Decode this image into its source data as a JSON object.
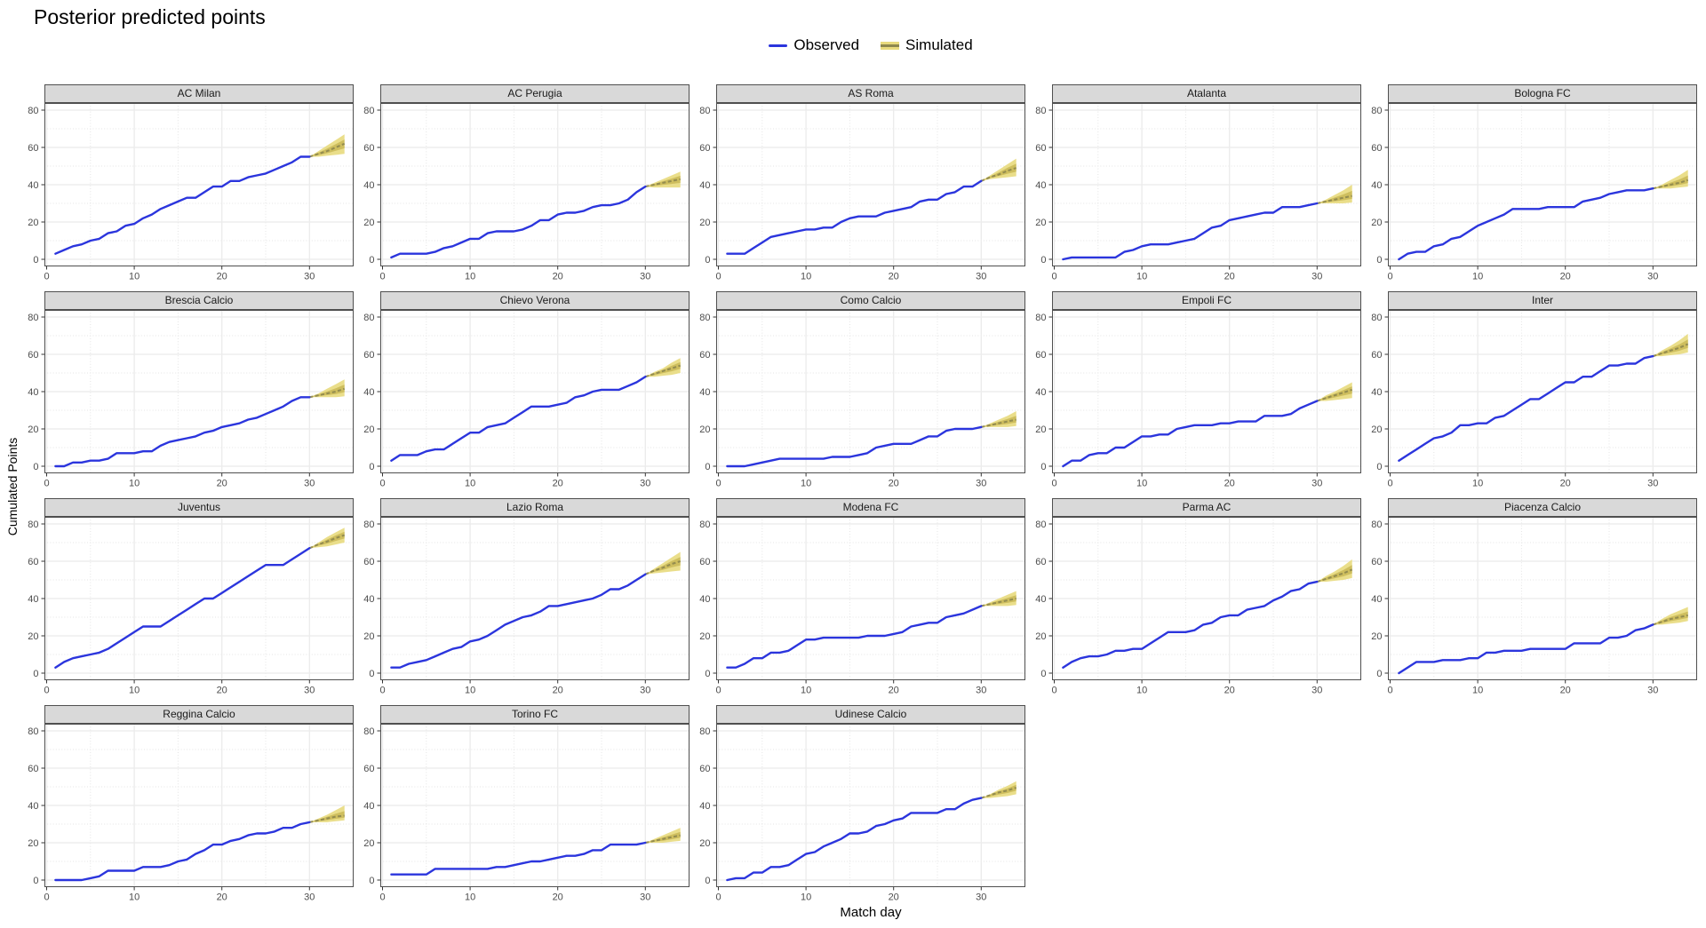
{
  "title": "Posterior predicted points",
  "legend": {
    "observed_label": "Observed",
    "simulated_label": "Simulated"
  },
  "axes": {
    "x_label": "Match day",
    "y_label": "Cumulated Points"
  },
  "chart_data": {
    "type": "line",
    "title": "Posterior predicted points",
    "xlabel": "Match day",
    "ylabel": "Cumulated Points",
    "x_ticks": [
      0,
      10,
      20,
      30
    ],
    "y_ticks": [
      0,
      20,
      40,
      60,
      80
    ],
    "x_minor_ticks": [
      5,
      15,
      25,
      35
    ],
    "y_minor_ticks": [
      10,
      30,
      50,
      70
    ],
    "xlim": [
      0,
      35
    ],
    "ylim": [
      0,
      84
    ],
    "grid": true,
    "legend_position": "top-center",
    "legend": [
      {
        "name": "Observed",
        "color": "#2b35dd"
      },
      {
        "name": "Simulated",
        "color": "#8e874e"
      }
    ],
    "colors": {
      "observed": "#2b35dd",
      "sim_outer": "#e8da7d",
      "sim_inner": "#ccbc5c",
      "sim_center": "#8e874e",
      "grid_major": "#ebebeb",
      "grid_minor": "#e4e4e4",
      "panel_border": "#4f4f4f",
      "strip_bg": "#d9d9d9",
      "tick_label": "#4d4d4d",
      "tick_mark": "#333333"
    },
    "observed_days_start": 1,
    "sim_days": [
      30,
      31,
      32,
      33,
      34
    ],
    "facets": [
      {
        "team": "AC Milan",
        "observed": [
          3,
          5,
          7,
          8,
          10,
          11,
          14,
          15,
          18,
          19,
          22,
          24,
          27,
          29,
          31,
          33,
          33,
          36,
          39,
          39,
          42,
          42,
          44,
          45,
          46,
          48,
          50,
          52,
          55,
          55
        ],
        "sim_lower": [
          55,
          55,
          55.5,
          56,
          56.5
        ],
        "sim_median": [
          55,
          56.5,
          58,
          60,
          62
        ],
        "sim_upper": [
          55,
          58,
          61,
          64,
          67
        ]
      },
      {
        "team": "AC Perugia",
        "observed": [
          1,
          3,
          3,
          3,
          3,
          4,
          6,
          7,
          9,
          11,
          11,
          14,
          15,
          15,
          15,
          16,
          18,
          21,
          21,
          24,
          25,
          25,
          26,
          28,
          29,
          29,
          30,
          32,
          36,
          39
        ],
        "sim_lower": [
          39,
          38.5,
          38.5,
          38.5,
          38.5
        ],
        "sim_median": [
          39,
          40,
          41,
          42,
          43
        ],
        "sim_upper": [
          39,
          41,
          43,
          45,
          47
        ]
      },
      {
        "team": "AS Roma",
        "observed": [
          3,
          3,
          3,
          6,
          9,
          12,
          13,
          14,
          15,
          16,
          16,
          17,
          17,
          20,
          22,
          23,
          23,
          23,
          25,
          26,
          27,
          28,
          31,
          32,
          32,
          35,
          36,
          39,
          39,
          42
        ],
        "sim_lower": [
          42,
          43,
          43.5,
          44,
          44.5
        ],
        "sim_median": [
          42,
          44,
          45.5,
          47.5,
          49
        ],
        "sim_upper": [
          42,
          45,
          48,
          51,
          54
        ]
      },
      {
        "team": "Atalanta",
        "observed": [
          0,
          1,
          1,
          1,
          1,
          1,
          1,
          4,
          5,
          7,
          8,
          8,
          8,
          9,
          10,
          11,
          14,
          17,
          18,
          21,
          22,
          23,
          24,
          25,
          25,
          28,
          28,
          28,
          29,
          30
        ],
        "sim_lower": [
          30,
          30,
          30,
          30,
          30.5
        ],
        "sim_median": [
          30,
          31,
          32,
          33,
          34
        ],
        "sim_upper": [
          30,
          32,
          34.5,
          37,
          40
        ]
      },
      {
        "team": "Bologna FC",
        "observed": [
          0,
          3,
          4,
          4,
          7,
          8,
          11,
          12,
          15,
          18,
          20,
          22,
          24,
          27,
          27,
          27,
          27,
          28,
          28,
          28,
          28,
          31,
          32,
          33,
          35,
          36,
          37,
          37,
          37,
          38
        ],
        "sim_lower": [
          38,
          38,
          38,
          38.5,
          39
        ],
        "sim_median": [
          38,
          39,
          40,
          41,
          42.5
        ],
        "sim_upper": [
          38,
          40,
          42.5,
          45,
          48
        ]
      },
      {
        "team": "Brescia Calcio",
        "observed": [
          0,
          0,
          2,
          2,
          3,
          3,
          4,
          7,
          7,
          7,
          8,
          8,
          11,
          13,
          14,
          15,
          16,
          18,
          19,
          21,
          22,
          23,
          25,
          26,
          28,
          30,
          32,
          35,
          37,
          37
        ],
        "sim_lower": [
          37,
          37,
          37,
          37,
          37.5
        ],
        "sim_median": [
          37,
          38,
          39,
          40,
          41.5
        ],
        "sim_upper": [
          37,
          39,
          41.5,
          44,
          46.5
        ]
      },
      {
        "team": "Chievo Verona",
        "observed": [
          3,
          6,
          6,
          6,
          8,
          9,
          9,
          12,
          15,
          18,
          18,
          21,
          22,
          23,
          26,
          29,
          32,
          32,
          32,
          33,
          34,
          37,
          38,
          40,
          41,
          41,
          41,
          43,
          45,
          48
        ],
        "sim_lower": [
          48,
          48,
          48.5,
          49,
          50
        ],
        "sim_median": [
          48,
          49.5,
          51,
          52.5,
          54
        ],
        "sim_upper": [
          48,
          50.5,
          52.5,
          55.5,
          58
        ]
      },
      {
        "team": "Como Calcio",
        "observed": [
          0,
          0,
          0,
          1,
          2,
          3,
          4,
          4,
          4,
          4,
          4,
          4,
          5,
          5,
          5,
          6,
          7,
          10,
          11,
          12,
          12,
          12,
          14,
          16,
          16,
          19,
          20,
          20,
          20,
          21
        ],
        "sim_lower": [
          21,
          21,
          21,
          21,
          21.5
        ],
        "sim_median": [
          21,
          22,
          23,
          24,
          25
        ],
        "sim_upper": [
          21,
          23,
          25,
          27,
          29.5
        ]
      },
      {
        "team": "Empoli FC",
        "observed": [
          0,
          3,
          3,
          6,
          7,
          7,
          10,
          10,
          13,
          16,
          16,
          17,
          17,
          20,
          21,
          22,
          22,
          22,
          23,
          23,
          24,
          24,
          24,
          27,
          27,
          27,
          28,
          31,
          33,
          35
        ],
        "sim_lower": [
          35,
          35,
          35.5,
          36,
          36.5
        ],
        "sim_median": [
          35,
          36.5,
          38,
          39.5,
          41
        ],
        "sim_upper": [
          35,
          38,
          40,
          42.5,
          45
        ]
      },
      {
        "team": "Inter",
        "observed": [
          3,
          6,
          9,
          12,
          15,
          16,
          18,
          22,
          22,
          23,
          23,
          26,
          27,
          30,
          33,
          36,
          36,
          39,
          42,
          45,
          45,
          48,
          48,
          51,
          54,
          54,
          55,
          55,
          58,
          59
        ],
        "sim_lower": [
          59,
          59,
          59.5,
          60,
          61
        ],
        "sim_median": [
          59,
          60.5,
          62,
          63.5,
          65.5
        ],
        "sim_upper": [
          59,
          62,
          64.5,
          67.5,
          71
        ]
      },
      {
        "team": "Juventus",
        "observed": [
          3,
          6,
          8,
          9,
          10,
          11,
          13,
          16,
          19,
          22,
          25,
          25,
          25,
          28,
          31,
          34,
          37,
          40,
          40,
          43,
          46,
          49,
          52,
          55,
          58,
          58,
          58,
          61,
          64,
          67
        ],
        "sim_lower": [
          67,
          67.5,
          68,
          69,
          70
        ],
        "sim_median": [
          67,
          69,
          70.5,
          72.5,
          74
        ],
        "sim_upper": [
          67,
          70,
          73,
          75.5,
          78
        ]
      },
      {
        "team": "Lazio Roma",
        "observed": [
          3,
          3,
          5,
          6,
          7,
          9,
          11,
          13,
          14,
          17,
          18,
          20,
          23,
          26,
          28,
          30,
          31,
          33,
          36,
          36,
          37,
          38,
          39,
          40,
          42,
          45,
          45,
          47,
          50,
          53
        ],
        "sim_lower": [
          53,
          53.5,
          54,
          54.5,
          55
        ],
        "sim_median": [
          53,
          55,
          56.5,
          58.5,
          60
        ],
        "sim_upper": [
          53,
          56,
          59,
          62,
          65
        ]
      },
      {
        "team": "Modena FC",
        "observed": [
          3,
          3,
          5,
          8,
          8,
          11,
          11,
          12,
          15,
          18,
          18,
          19,
          19,
          19,
          19,
          19,
          20,
          20,
          20,
          21,
          22,
          25,
          26,
          27,
          27,
          30,
          31,
          32,
          34,
          36
        ],
        "sim_lower": [
          36,
          36,
          36,
          36,
          36.5
        ],
        "sim_median": [
          36,
          37,
          38,
          39,
          40
        ],
        "sim_upper": [
          36,
          38,
          40,
          42,
          44
        ]
      },
      {
        "team": "Parma AC",
        "observed": [
          3,
          6,
          8,
          9,
          9,
          10,
          12,
          12,
          13,
          13,
          16,
          19,
          22,
          22,
          22,
          23,
          26,
          27,
          30,
          31,
          31,
          34,
          35,
          36,
          39,
          41,
          44,
          45,
          48,
          49
        ],
        "sim_lower": [
          49,
          49,
          49.5,
          50,
          51
        ],
        "sim_median": [
          49,
          50.5,
          52,
          53.5,
          55.5
        ],
        "sim_upper": [
          49,
          52,
          54.5,
          57.5,
          61
        ]
      },
      {
        "team": "Piacenza Calcio",
        "observed": [
          0,
          3,
          6,
          6,
          6,
          7,
          7,
          7,
          8,
          8,
          11,
          11,
          12,
          12,
          12,
          13,
          13,
          13,
          13,
          13,
          16,
          16,
          16,
          16,
          19,
          19,
          20,
          23,
          24,
          26
        ],
        "sim_lower": [
          26,
          26,
          26.5,
          27,
          28
        ],
        "sim_median": [
          26,
          27.5,
          29,
          30,
          31
        ],
        "sim_upper": [
          26,
          29,
          31.5,
          33.5,
          35.5
        ]
      },
      {
        "team": "Reggina Calcio",
        "observed": [
          0,
          0,
          0,
          0,
          1,
          2,
          5,
          5,
          5,
          5,
          7,
          7,
          7,
          8,
          10,
          11,
          14,
          16,
          19,
          19,
          21,
          22,
          24,
          25,
          25,
          26,
          28,
          28,
          30,
          31
        ],
        "sim_lower": [
          31,
          31,
          31,
          31.5,
          32
        ],
        "sim_median": [
          31,
          32,
          33,
          34,
          34.5
        ],
        "sim_upper": [
          31,
          33,
          35,
          37.5,
          40
        ]
      },
      {
        "team": "Torino FC",
        "observed": [
          3,
          3,
          3,
          3,
          3,
          6,
          6,
          6,
          6,
          6,
          6,
          6,
          7,
          7,
          8,
          9,
          10,
          10,
          11,
          12,
          13,
          13,
          14,
          16,
          16,
          19,
          19,
          19,
          19,
          20
        ],
        "sim_lower": [
          20,
          20,
          20,
          20.5,
          21
        ],
        "sim_median": [
          20,
          21,
          22,
          23,
          24
        ],
        "sim_upper": [
          20,
          22,
          24,
          26,
          28
        ]
      },
      {
        "team": "Udinese Calcio",
        "observed": [
          0,
          1,
          1,
          4,
          4,
          7,
          7,
          8,
          11,
          14,
          15,
          18,
          20,
          22,
          25,
          25,
          26,
          29,
          30,
          32,
          33,
          36,
          36,
          36,
          36,
          38,
          38,
          41,
          43,
          44
        ],
        "sim_lower": [
          44,
          44,
          44.5,
          45,
          46
        ],
        "sim_median": [
          44,
          45.5,
          47,
          48,
          49.5
        ],
        "sim_upper": [
          44,
          46,
          48.5,
          50.5,
          53
        ]
      }
    ]
  }
}
